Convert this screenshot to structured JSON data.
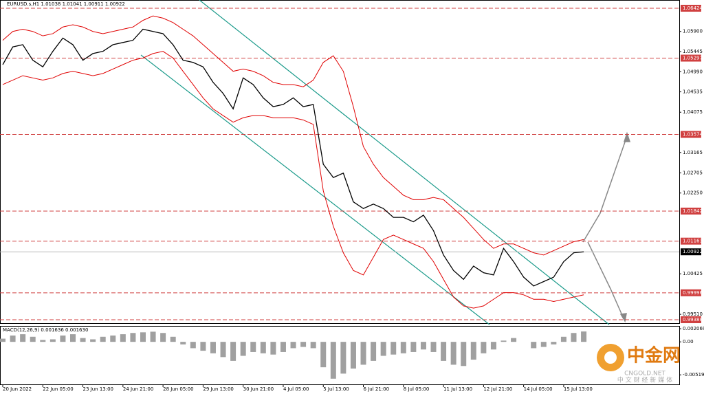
{
  "chart_data": [
    {
      "type": "line",
      "title": "EURUSD.s,H1 1.01038 1.01041 1.00911 1.00922",
      "x": [
        "20 Jun 2022",
        null,
        null,
        null,
        "22 Jun 05:00",
        null,
        null,
        null,
        "23 Jun 13:00",
        null,
        null,
        null,
        "24 Jun 21:00",
        null,
        null,
        null,
        "28 Jun 05:00",
        null,
        null,
        null,
        "29 Jun 13:00",
        null,
        null,
        null,
        "30 Jun 21:00",
        null,
        null,
        null,
        "4 Jul 05:00",
        null,
        null,
        null,
        "5 Jul 13:00",
        null,
        null,
        null,
        "6 Jul 21:00",
        null,
        null,
        null,
        "8 Jul 05:00",
        null,
        null,
        null,
        "11 Jul 13:00",
        null,
        null,
        null,
        "12 Jul 21:00",
        null,
        null,
        null,
        "14 Jul 05:00",
        null,
        null,
        null,
        "15 Jul 13:00",
        null,
        null
      ],
      "series": [
        {
          "name": "EURUSD.s",
          "color": "#000000",
          "values": [
            1.0515,
            1.0555,
            1.056,
            1.0525,
            1.051,
            1.0545,
            1.0575,
            1.056,
            1.0525,
            1.054,
            1.0545,
            1.056,
            1.0565,
            1.057,
            1.0595,
            1.059,
            1.0585,
            1.056,
            1.0525,
            1.052,
            1.051,
            1.0475,
            1.045,
            1.0415,
            1.0485,
            1.047,
            1.044,
            1.042,
            1.0425,
            1.044,
            1.042,
            1.0425,
            1.029,
            1.026,
            1.027,
            1.0205,
            1.019,
            1.02,
            1.019,
            1.017,
            1.017,
            1.016,
            1.0175,
            1.014,
            1.0085,
            1.005,
            1.003,
            1.006,
            1.0045,
            1.004,
            1.01,
            1.007,
            1.0035,
            1.0015,
            1.0025,
            1.0035,
            1.007,
            1.009,
            1.00922
          ]
        },
        {
          "color": "#e00000",
          "values": [
            1.057,
            1.059,
            1.0595,
            1.059,
            1.058,
            1.0585,
            1.06,
            1.0605,
            1.06,
            1.059,
            1.0585,
            1.059,
            1.0595,
            1.06,
            1.0615,
            1.0625,
            1.062,
            1.061,
            1.0595,
            1.058,
            1.056,
            1.054,
            1.052,
            1.05,
            1.0505,
            1.05,
            1.049,
            1.0475,
            1.047,
            1.047,
            1.0465,
            1.048,
            1.052,
            1.0535,
            1.05,
            1.042,
            1.033,
            1.029,
            1.026,
            1.024,
            1.022,
            1.021,
            1.021,
            1.0215,
            1.021,
            1.019,
            1.017,
            1.0145,
            1.012,
            1.01,
            1.011,
            1.011,
            1.01,
            1.009,
            1.0085,
            1.0095,
            1.0105,
            1.0115,
            1.012
          ]
        },
        {
          "color": "#e00000",
          "values": [
            1.047,
            1.048,
            1.049,
            1.0485,
            1.048,
            1.0485,
            1.0495,
            1.05,
            1.0495,
            1.049,
            1.0495,
            1.0505,
            1.0515,
            1.0525,
            1.053,
            1.054,
            1.0545,
            1.053,
            1.05,
            1.047,
            1.044,
            1.0415,
            1.04,
            1.0385,
            1.0395,
            1.04,
            1.04,
            1.0395,
            1.0395,
            1.0395,
            1.039,
            1.038,
            1.023,
            1.015,
            1.009,
            1.005,
            1.004,
            1.008,
            1.012,
            1.013,
            1.012,
            1.011,
            1.01,
            1.007,
            1.003,
            0.999,
            0.997,
            0.9965,
            0.997,
            0.9985,
            1.0,
            1.0,
            0.9995,
            0.9985,
            0.9985,
            0.998,
            0.9985,
            0.999,
            0.9995
          ]
        }
      ],
      "ylim": [
        0.9931,
        1.0661
      ],
      "yticks": [
        {
          "value": 1.059,
          "label": "1.05900"
        },
        1.05445,
        {
          "value": 1.0499,
          "label": "1.04990"
        },
        1.04535,
        1.04075,
        1.03165,
        1.02705,
        {
          "value": 1.0225,
          "label": "1.02250"
        },
        1.00425,
        {
          "value": 0.9951,
          "label": "0.99510"
        }
      ],
      "hlines": [
        1.06424,
        1.05297,
        1.03574,
        1.01842,
        1.01163,
        0.99996,
        0.99388
      ],
      "hline_color": "#d04040",
      "current": 1.00922
    },
    {
      "type": "bar",
      "title": "MACD(12,26,9) 0.001636 0.001630",
      "values": [
        0.0005,
        0.001,
        0.0012,
        0.0008,
        0.0003,
        0.0004,
        0.001,
        0.0012,
        0.0006,
        0.0004,
        0.0008,
        0.001,
        0.0012,
        0.0014,
        0.0015,
        0.0016,
        0.0014,
        0.0008,
        -0.0004,
        -0.001,
        -0.0014,
        -0.0018,
        -0.0024,
        -0.003,
        -0.0022,
        -0.0016,
        -0.0018,
        -0.002,
        -0.0016,
        -0.001,
        -0.0008,
        -0.001,
        -0.004,
        -0.0058,
        -0.005,
        -0.0042,
        -0.0036,
        -0.003,
        -0.0022,
        -0.002,
        -0.0018,
        -0.0016,
        -0.0012,
        -0.0016,
        -0.003,
        -0.0036,
        -0.0038,
        -0.0028,
        -0.0018,
        -0.0012,
        0.0002,
        0.0006,
        0.0,
        -0.001,
        -0.0008,
        -0.0004,
        0.0008,
        0.0014,
        0.001636
      ],
      "color": "#a0a0a0",
      "ylim": [
        -0.0068,
        0.0024
      ],
      "yticks": [
        0.002069,
        {
          "value": 0,
          "label": "0.00"
        },
        -0.005193
      ]
    }
  ],
  "watermark": {
    "logo": "中金网",
    "domain": "CNGOLD.NET",
    "slogan": "中 文 财 经 新 媒 体"
  }
}
